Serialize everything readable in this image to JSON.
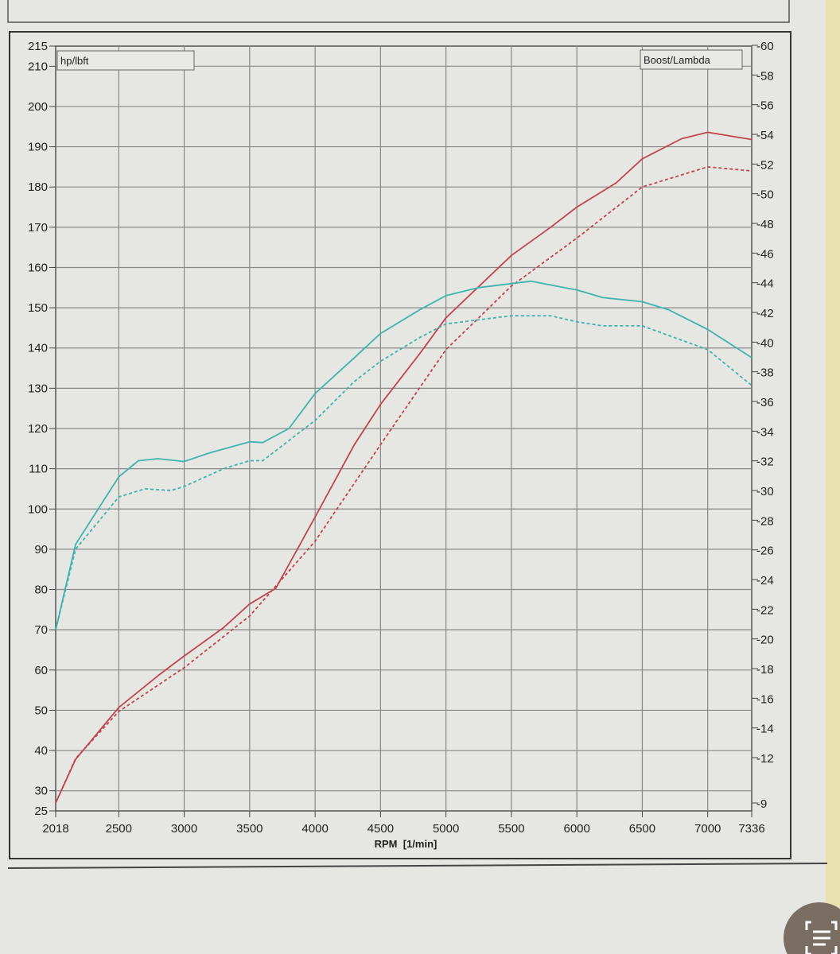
{
  "chart_data": {
    "type": "line",
    "xlabel": "RPM  [1/min]",
    "left_axis_label": "hp/lbft",
    "right_axis_label": "Boost/Lambda",
    "xlim": [
      2018,
      7336
    ],
    "ylim": [
      25,
      215
    ],
    "y2lim": [
      -9,
      -60
    ],
    "x_ticks": [
      "2018",
      "2500",
      "3000",
      "3500",
      "4000",
      "4500",
      "5000",
      "5500",
      "6000",
      "6500",
      "7000",
      "7336"
    ],
    "y_ticks": [
      "215",
      "210",
      "200",
      "190",
      "180",
      "170",
      "160",
      "150",
      "140",
      "130",
      "120",
      "110",
      "100",
      "90",
      "80",
      "70",
      "60",
      "50",
      "40",
      "30",
      "25"
    ],
    "y2_ticks": [
      "-60",
      "-58",
      "-56",
      "-54",
      "-52",
      "-50",
      "-48",
      "-46",
      "-44",
      "-42",
      "-40",
      "-38",
      "-36",
      "-34",
      "-32",
      "-30",
      "-28",
      "-26",
      "-24",
      "-22",
      "-20",
      "-18",
      "-16",
      "-14",
      "-12",
      "-9"
    ],
    "grid": true,
    "series": [
      {
        "color": "#c0454f",
        "style": "solid",
        "x": [
          2018,
          2170,
          2500,
          2800,
          3000,
          3300,
          3500,
          3700,
          4000,
          4300,
          4500,
          4800,
          5000,
          5500,
          5800,
          6000,
          6300,
          6500,
          6800,
          7000,
          7336
        ],
        "y": [
          27,
          37.8,
          50.7,
          58.6,
          63.5,
          70.5,
          76.4,
          80.3,
          98,
          116,
          126,
          138.6,
          147.5,
          163,
          170,
          175,
          181,
          187,
          192,
          193.6,
          191.8
        ]
      },
      {
        "color": "#c0454f",
        "style": "dashed",
        "x": [
          2018,
          2170,
          2500,
          3000,
          3500,
          4000,
          4500,
          5000,
          5500,
          6000,
          6500,
          7000,
          7336
        ],
        "y": [
          27,
          38,
          49.7,
          60.6,
          73.4,
          92,
          116,
          139.6,
          155.4,
          167.3,
          180,
          185,
          184
        ]
      },
      {
        "color": "#3fb3ad",
        "style": "solid",
        "x": [
          2018,
          2170,
          2500,
          2650,
          2800,
          3000,
          3200,
          3500,
          3600,
          3800,
          4000,
          4300,
          4500,
          4800,
          5000,
          5250,
          5500,
          5650,
          6000,
          6200,
          6500,
          6700,
          7000,
          7336
        ],
        "y": [
          70,
          91.2,
          108,
          112,
          112.5,
          111.8,
          114,
          116.7,
          116.5,
          120,
          128.7,
          137.6,
          143.6,
          149.5,
          153,
          155,
          156,
          156.6,
          154.4,
          152.5,
          151.5,
          149.5,
          144.6,
          137.6
        ]
      },
      {
        "color": "#3fb3ad",
        "style": "dashed",
        "x": [
          2018,
          2170,
          2500,
          2700,
          2900,
          3000,
          3300,
          3500,
          3600,
          4000,
          4300,
          4500,
          4800,
          5000,
          5500,
          5800,
          6000,
          6200,
          6500,
          7000,
          7336
        ],
        "y": [
          70,
          90,
          103,
          105,
          104.6,
          105.6,
          110,
          112,
          112,
          122,
          131.7,
          136.7,
          142.6,
          146,
          148,
          148,
          146.5,
          145.5,
          145.5,
          139.6,
          130.7
        ]
      }
    ]
  }
}
